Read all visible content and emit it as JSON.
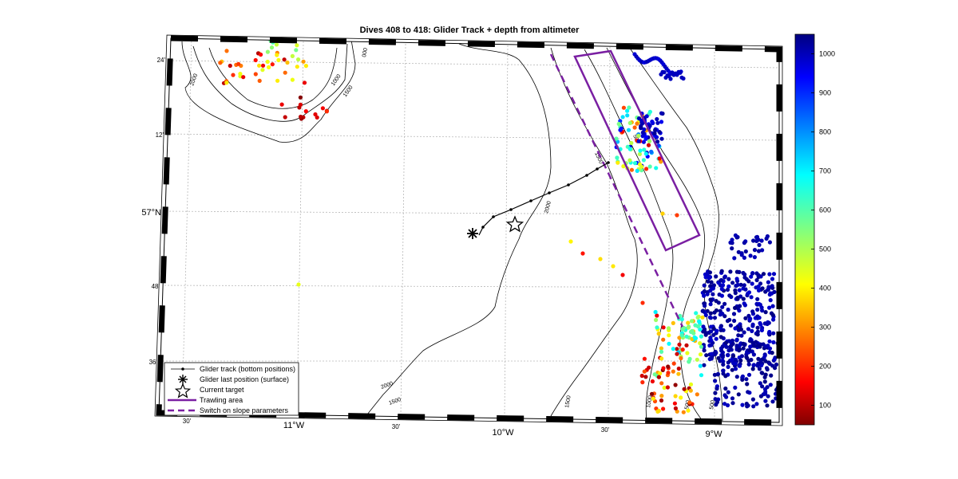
{
  "figure": {
    "title": "Dives 408 to 418: Glider Track + depth from altimeter"
  },
  "map": {
    "lat_ticks": [
      "24'",
      "12'",
      "57°N",
      "48'",
      "36'"
    ],
    "lon_ticks": [
      "30'",
      "11°W",
      "30'",
      "10°W",
      "30'",
      "9°W"
    ],
    "contour_labels": [
      "2000",
      "1000",
      "1500",
      "000",
      "1500",
      "500",
      "2000",
      "2000",
      "1500",
      "1500",
      "1000",
      "500",
      "500"
    ]
  },
  "colorbar": {
    "ticks": [
      "1000",
      "900",
      "800",
      "700",
      "600",
      "500",
      "400",
      "300",
      "200",
      "100"
    ],
    "range": [
      50,
      1050
    ],
    "colormap": "jet"
  },
  "legend": {
    "items": [
      {
        "label": "Glider track (bottom positions)",
        "symbol": "dot-line"
      },
      {
        "label": "Glider last position (surface)",
        "symbol": "asterisk"
      },
      {
        "label": "Current target",
        "symbol": "star"
      },
      {
        "label": "Trawling area",
        "symbol": "purple-solid"
      },
      {
        "label": "Switch on slope parameters",
        "symbol": "purple-dashed"
      }
    ]
  },
  "colors": {
    "trawling_area": "#7a1fa2",
    "glider_track": "#000000",
    "contour": "#000000",
    "grid": "#b8b8b8"
  }
}
